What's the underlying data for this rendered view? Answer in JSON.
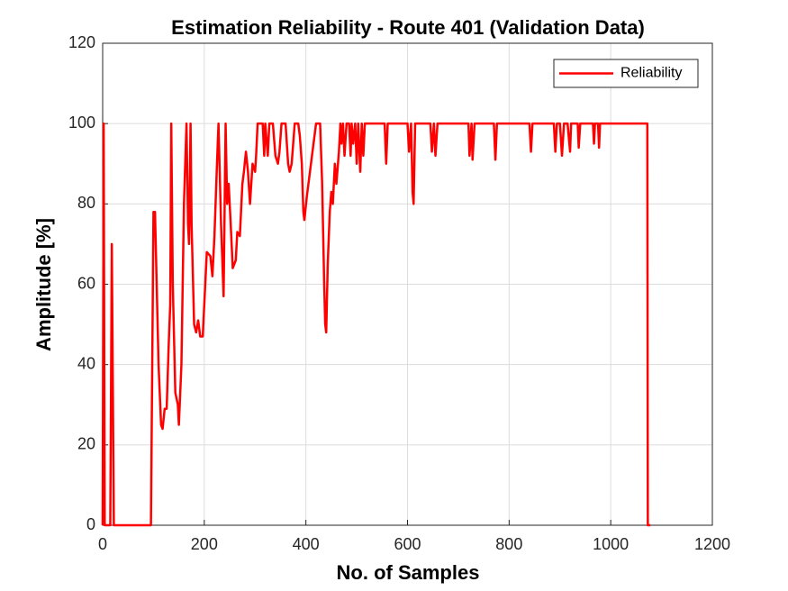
{
  "chart_data": {
    "type": "line",
    "title": "Estimation Reliability - Route 401 (Validation Data)",
    "xlabel": "No. of Samples",
    "ylabel": "Amplitude [%]",
    "x": [
      0,
      2,
      4,
      15,
      18,
      22,
      95,
      100,
      103,
      110,
      115,
      118,
      122,
      126,
      130,
      133,
      135,
      138,
      143,
      148,
      150,
      155,
      160,
      165,
      168,
      170,
      173,
      175,
      180,
      184,
      188,
      192,
      197,
      200,
      205,
      212,
      216,
      220,
      225,
      228,
      233,
      238,
      242,
      245,
      248,
      252,
      256,
      262,
      265,
      270,
      275,
      278,
      282,
      286,
      290,
      295,
      300,
      302,
      305,
      315,
      318,
      320,
      325,
      328,
      335,
      340,
      345,
      348,
      352,
      360,
      365,
      368,
      372,
      378,
      385,
      388,
      392,
      395,
      397,
      402,
      408,
      415,
      420,
      428,
      432,
      436,
      438,
      440,
      443,
      447,
      450,
      453,
      457,
      460,
      465,
      468,
      470,
      473,
      476,
      480,
      485,
      488,
      490,
      493,
      497,
      500,
      503,
      507,
      510,
      513,
      516,
      555,
      558,
      561,
      600,
      603,
      607,
      610,
      612,
      615,
      645,
      648,
      652,
      655,
      659,
      720,
      722,
      726,
      728,
      732,
      770,
      773,
      776,
      840,
      843,
      846,
      888,
      891,
      894,
      900,
      904,
      908,
      915,
      920,
      922,
      935,
      937,
      940,
      965,
      967,
      969,
      975,
      977,
      979,
      1072,
      1073,
      1078
    ],
    "series": [
      {
        "name": "Reliability",
        "color": "#ff0000",
        "values": [
          0,
          100,
          0,
          0,
          70,
          0,
          0,
          78,
          78,
          40,
          25,
          24,
          29,
          29,
          45,
          55,
          100,
          60,
          33,
          30,
          25,
          40,
          80,
          100,
          75,
          70,
          100,
          75,
          50,
          48,
          51,
          47,
          47,
          55,
          68,
          67,
          62,
          72,
          90,
          100,
          75,
          57,
          100,
          80,
          85,
          75,
          64,
          66,
          73,
          72,
          85,
          88,
          93,
          88,
          80,
          90,
          88,
          92,
          100,
          100,
          92,
          100,
          92,
          100,
          100,
          92,
          90,
          93,
          100,
          100,
          90,
          88,
          90,
          100,
          100,
          97,
          90,
          78,
          76,
          82,
          88,
          95,
          100,
          100,
          85,
          60,
          50,
          48,
          65,
          78,
          83,
          80,
          90,
          85,
          93,
          100,
          95,
          100,
          92,
          100,
          100,
          92,
          100,
          95,
          100,
          90,
          100,
          88,
          100,
          92,
          100,
          100,
          90,
          100,
          100,
          93,
          100,
          83,
          80,
          100,
          100,
          93,
          100,
          92,
          100,
          100,
          92,
          100,
          91,
          100,
          100,
          91,
          100,
          100,
          93,
          100,
          100,
          93,
          100,
          100,
          92,
          100,
          100,
          93,
          100,
          100,
          94,
          100,
          100,
          95,
          100,
          100,
          94,
          100,
          100,
          0,
          0
        ]
      }
    ],
    "xlim": [
      0,
      1200
    ],
    "xticks": [
      0,
      200,
      400,
      600,
      800,
      1000,
      1200
    ],
    "ylim": [
      0,
      120
    ],
    "yticks": [
      0,
      20,
      40,
      60,
      80,
      100,
      120
    ],
    "grid": true,
    "legend": "northeast"
  }
}
